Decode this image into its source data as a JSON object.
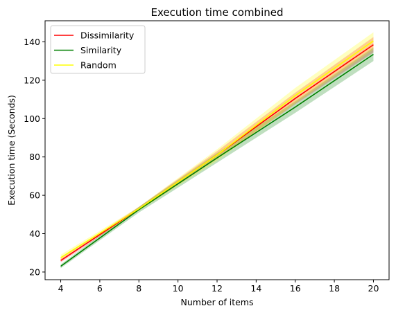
{
  "chart_data": {
    "type": "line",
    "title": "Execution time combined",
    "xlabel": "Number of items",
    "ylabel": "Execution time (Seconds)",
    "xlim": [
      3.2,
      20.8
    ],
    "ylim": [
      16.0,
      151.0
    ],
    "xticks": [
      4,
      6,
      8,
      10,
      12,
      14,
      16,
      18,
      20
    ],
    "yticks": [
      20,
      40,
      60,
      80,
      100,
      120,
      140
    ],
    "grid": false,
    "legend_position": "top-left",
    "x": [
      4,
      8,
      12,
      16,
      20
    ],
    "series": [
      {
        "name": "Dissimilarity",
        "color": "#ff0000",
        "values": [
          26.0,
          53.0,
          81.0,
          110.5,
          138.5
        ],
        "lower": [
          25.0,
          52.0,
          79.0,
          107.5,
          134.5
        ],
        "upper": [
          27.0,
          54.0,
          83.0,
          113.5,
          142.5
        ]
      },
      {
        "name": "Similarity",
        "color": "#008000",
        "values": [
          23.0,
          52.5,
          79.5,
          106.0,
          133.5
        ],
        "lower": [
          22.0,
          51.0,
          77.0,
          103.0,
          130.0
        ],
        "upper": [
          24.0,
          54.0,
          82.0,
          109.0,
          137.0
        ]
      },
      {
        "name": "Random",
        "color": "#ffff00",
        "values": [
          27.5,
          53.0,
          81.0,
          112.0,
          140.5
        ],
        "lower": [
          26.0,
          52.0,
          78.0,
          108.0,
          136.0
        ],
        "upper": [
          29.0,
          54.0,
          84.0,
          116.0,
          145.0
        ]
      }
    ]
  }
}
